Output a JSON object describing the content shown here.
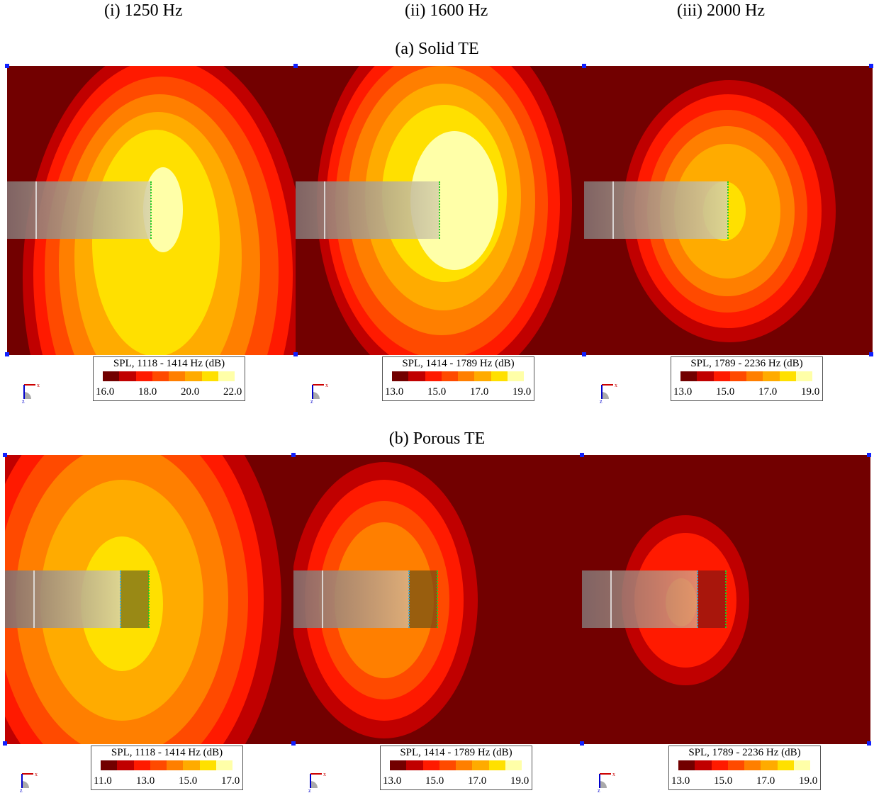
{
  "columns": [
    "(i) 1250 Hz",
    "(ii) 1600 Hz",
    "(iii) 2000 Hz"
  ],
  "rows": [
    "(a) Solid TE",
    "(b) Porous TE"
  ],
  "colors": {
    "background": "#720000",
    "scale": [
      "#720000",
      "#c00000",
      "#ff1a00",
      "#ff4a00",
      "#ff7f00",
      "#ffab00",
      "#ffe000",
      "#ffffa8"
    ]
  },
  "panels": [
    {
      "legend_title": "SPL, 1118 - 1414 Hz (dB)",
      "ticks": [
        "16.0",
        "18.0",
        "20.0",
        "22.0"
      ]
    },
    {
      "legend_title": "SPL, 1414 - 1789 Hz (dB)",
      "ticks": [
        "13.0",
        "15.0",
        "17.0",
        "19.0"
      ]
    },
    {
      "legend_title": "SPL, 1789 - 2236 Hz (dB)",
      "ticks": [
        "13.0",
        "15.0",
        "17.0",
        "19.0"
      ]
    },
    {
      "legend_title": "SPL, 1118 - 1414 Hz (dB)",
      "ticks": [
        "11.0",
        "13.0",
        "15.0",
        "17.0"
      ]
    },
    {
      "legend_title": "SPL, 1414 - 1789 Hz (dB)",
      "ticks": [
        "13.0",
        "15.0",
        "17.0",
        "19.0"
      ]
    },
    {
      "legend_title": "SPL, 1789 - 2236 Hz (dB)",
      "ticks": [
        "13.0",
        "15.0",
        "17.0",
        "19.0"
      ]
    }
  ],
  "axis_labels": {
    "x": "x",
    "z": "z"
  }
}
